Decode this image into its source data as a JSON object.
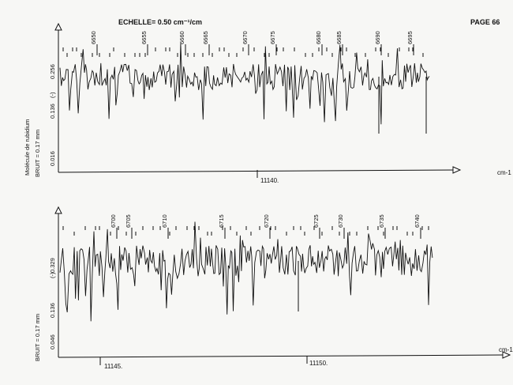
{
  "header": {
    "scale_text": "ECHELLE= 0.50 cm⁻¹/cm",
    "page_label": "PAGE 66"
  },
  "left_labels": {
    "molecule": "Molécule de rubidium",
    "noise_top": "BRUIT = 0.17 mm",
    "noise_bottom": "BRUIT = 0.17 mm"
  },
  "chart_data": [
    {
      "type": "line",
      "x_unit": "cm-1",
      "marker_x": "11140.",
      "line_numbers": [
        "6650",
        "6655",
        "6660",
        "6665",
        "6670",
        "6675",
        "6680",
        "6685",
        "6690",
        "6695"
      ],
      "y_ticks": [
        "(-)",
        "0.256",
        "0.136",
        "0.016"
      ]
    },
    {
      "type": "line",
      "x_unit": "cm-1",
      "marker_x": [
        "11145.",
        "11150."
      ],
      "line_numbers": [
        "6700",
        "6705",
        "6710",
        "6715",
        "6720",
        "6725",
        "6730",
        "6735",
        "6740"
      ],
      "y_ticks": [
        "(-)",
        "0.329",
        "0.136",
        "0.046"
      ]
    }
  ]
}
